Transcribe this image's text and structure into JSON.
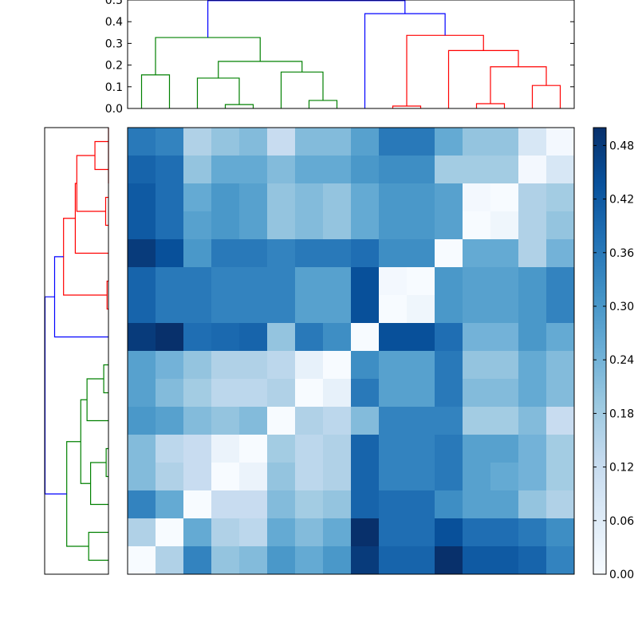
{
  "chart_data": {
    "type": "heatmap",
    "title": "",
    "n_rows": 16,
    "n_cols": 16,
    "colormap": [
      "#f7fbff",
      "#deebf7",
      "#c6dbef",
      "#9ecae1",
      "#6baed6",
      "#4292c6",
      "#2171b5",
      "#08519c",
      "#08306b"
    ],
    "clim": [
      0.0,
      0.5
    ],
    "values": [
      [
        0.36,
        0.34,
        0.16,
        0.2,
        0.22,
        0.12,
        0.22,
        0.22,
        0.28,
        0.36,
        0.36,
        0.26,
        0.2,
        0.2,
        0.08,
        0.01
      ],
      [
        0.4,
        0.38,
        0.2,
        0.26,
        0.26,
        0.22,
        0.26,
        0.26,
        0.3,
        0.32,
        0.32,
        0.18,
        0.18,
        0.18,
        0.01,
        0.08
      ],
      [
        0.42,
        0.38,
        0.26,
        0.3,
        0.28,
        0.2,
        0.22,
        0.2,
        0.26,
        0.3,
        0.3,
        0.28,
        0.01,
        0.0,
        0.16,
        0.18
      ],
      [
        0.42,
        0.38,
        0.28,
        0.3,
        0.28,
        0.2,
        0.22,
        0.2,
        0.26,
        0.3,
        0.3,
        0.28,
        0.0,
        0.02,
        0.16,
        0.2
      ],
      [
        0.48,
        0.44,
        0.3,
        0.36,
        0.36,
        0.34,
        0.36,
        0.36,
        0.38,
        0.32,
        0.32,
        0.0,
        0.26,
        0.26,
        0.16,
        0.24
      ],
      [
        0.4,
        0.36,
        0.36,
        0.34,
        0.34,
        0.34,
        0.28,
        0.28,
        0.44,
        0.01,
        0.0,
        0.3,
        0.28,
        0.28,
        0.3,
        0.34
      ],
      [
        0.4,
        0.36,
        0.36,
        0.34,
        0.34,
        0.34,
        0.28,
        0.28,
        0.44,
        0.0,
        0.02,
        0.3,
        0.28,
        0.28,
        0.3,
        0.34
      ],
      [
        0.48,
        0.5,
        0.38,
        0.39,
        0.4,
        0.2,
        0.36,
        0.32,
        0.0,
        0.44,
        0.44,
        0.38,
        0.24,
        0.24,
        0.3,
        0.26
      ],
      [
        0.28,
        0.24,
        0.2,
        0.16,
        0.16,
        0.14,
        0.04,
        0.0,
        0.32,
        0.28,
        0.28,
        0.36,
        0.2,
        0.2,
        0.26,
        0.22
      ],
      [
        0.28,
        0.22,
        0.18,
        0.14,
        0.14,
        0.16,
        0.0,
        0.04,
        0.36,
        0.28,
        0.28,
        0.36,
        0.22,
        0.22,
        0.26,
        0.22
      ],
      [
        0.3,
        0.28,
        0.22,
        0.2,
        0.22,
        0.0,
        0.16,
        0.14,
        0.22,
        0.34,
        0.34,
        0.34,
        0.18,
        0.18,
        0.22,
        0.12
      ],
      [
        0.22,
        0.14,
        0.12,
        0.03,
        0.0,
        0.18,
        0.14,
        0.16,
        0.4,
        0.34,
        0.34,
        0.36,
        0.28,
        0.28,
        0.24,
        0.18
      ],
      [
        0.22,
        0.16,
        0.12,
        0.0,
        0.03,
        0.2,
        0.14,
        0.16,
        0.4,
        0.34,
        0.34,
        0.36,
        0.28,
        0.26,
        0.24,
        0.18
      ],
      [
        0.34,
        0.26,
        0.0,
        0.12,
        0.12,
        0.22,
        0.18,
        0.2,
        0.4,
        0.38,
        0.38,
        0.32,
        0.28,
        0.28,
        0.2,
        0.16
      ],
      [
        0.16,
        0.0,
        0.26,
        0.16,
        0.14,
        0.26,
        0.22,
        0.26,
        0.5,
        0.38,
        0.38,
        0.44,
        0.38,
        0.38,
        0.36,
        0.32
      ],
      [
        0.0,
        0.16,
        0.34,
        0.2,
        0.22,
        0.3,
        0.26,
        0.3,
        0.48,
        0.4,
        0.4,
        0.5,
        0.42,
        0.42,
        0.4,
        0.34
      ]
    ],
    "top_dendrogram": {
      "ylim": [
        0.0,
        0.5
      ],
      "yticks": [
        "0.0",
        "0.1",
        "0.2",
        "0.3",
        "0.4",
        "0.5"
      ],
      "links": [
        {
          "x": [
            0.5,
            0.5,
            1.5,
            1.5
          ],
          "h": [
            0.0,
            0.155,
            0.155,
            0.0
          ],
          "color": "#008000"
        },
        {
          "x": [
            3.5,
            3.5,
            4.5,
            4.5
          ],
          "h": [
            0.0,
            0.018,
            0.018,
            0.0
          ],
          "color": "#008000"
        },
        {
          "x": [
            2.5,
            2.5,
            4.0,
            4.0
          ],
          "h": [
            0.0,
            0.14,
            0.14,
            0.018
          ],
          "color": "#008000"
        },
        {
          "x": [
            6.5,
            6.5,
            7.5,
            7.5
          ],
          "h": [
            0.0,
            0.037,
            0.037,
            0.0
          ],
          "color": "#008000"
        },
        {
          "x": [
            5.5,
            5.5,
            7.0,
            7.0
          ],
          "h": [
            0.0,
            0.168,
            0.168,
            0.037
          ],
          "color": "#008000"
        },
        {
          "x": [
            3.25,
            3.25,
            6.25,
            6.25
          ],
          "h": [
            0.14,
            0.217,
            0.217,
            0.168
          ],
          "color": "#008000"
        },
        {
          "x": [
            1.0,
            1.0,
            4.75,
            4.75
          ],
          "h": [
            0.155,
            0.327,
            0.327,
            0.217
          ],
          "color": "#008000"
        },
        {
          "x": [
            9.5,
            9.5,
            10.5,
            10.5
          ],
          "h": [
            0.0,
            0.011,
            0.011,
            0.0
          ],
          "color": "#ff0000"
        },
        {
          "x": [
            12.5,
            12.5,
            13.5,
            13.5
          ],
          "h": [
            0.0,
            0.022,
            0.022,
            0.0
          ],
          "color": "#ff0000"
        },
        {
          "x": [
            14.5,
            14.5,
            15.5,
            15.5
          ],
          "h": [
            0.0,
            0.106,
            0.106,
            0.0
          ],
          "color": "#ff0000"
        },
        {
          "x": [
            13.0,
            13.0,
            15.0,
            15.0
          ],
          "h": [
            0.022,
            0.192,
            0.192,
            0.106
          ],
          "color": "#ff0000"
        },
        {
          "x": [
            11.5,
            11.5,
            14.0,
            14.0
          ],
          "h": [
            0.0,
            0.267,
            0.267,
            0.192
          ],
          "color": "#ff0000"
        },
        {
          "x": [
            10.0,
            10.0,
            12.75,
            12.75
          ],
          "h": [
            0.011,
            0.337,
            0.337,
            0.267
          ],
          "color": "#ff0000"
        },
        {
          "x": [
            8.5,
            8.5,
            11.375,
            11.375
          ],
          "h": [
            0.0,
            0.437,
            0.437,
            0.337
          ],
          "color": "#0000ff"
        },
        {
          "x": [
            2.875,
            2.875,
            9.9375,
            9.9375
          ],
          "h": [
            0.327,
            0.497,
            0.497,
            0.437
          ],
          "color": "#0000ff"
        }
      ]
    },
    "left_dendrogram": {
      "xlim": [
        0.0,
        0.5
      ],
      "links": [
        {
          "y": [
            0.5,
            0.5,
            1.5,
            1.5
          ],
          "h": [
            0.0,
            0.106,
            0.106,
            0.0
          ],
          "color": "#ff0000"
        },
        {
          "y": [
            2.5,
            2.5,
            3.5,
            3.5
          ],
          "h": [
            0.0,
            0.022,
            0.022,
            0.0
          ],
          "color": "#ff0000"
        },
        {
          "y": [
            1.0,
            1.0,
            3.0,
            3.0
          ],
          "h": [
            0.106,
            0.248,
            0.248,
            0.022
          ],
          "color": "#ff0000"
        },
        {
          "y": [
            0.0,
            0.0,
            2.0,
            2.0
          ],
          "h": [
            0.0,
            0.0,
            0.0,
            0.0
          ],
          "color": "#ff0000"
        },
        {
          "y": [
            4.5,
            4.5,
            2.0,
            2.0
          ],
          "h": [
            0.0,
            0.26,
            0.26,
            0.248
          ],
          "color": "#ff0000"
        },
        {
          "y": [
            5.5,
            5.5,
            6.5,
            6.5
          ],
          "h": [
            0.0,
            0.011,
            0.011,
            0.0
          ],
          "color": "#ff0000"
        },
        {
          "y": [
            3.25,
            3.25,
            6.0,
            6.0
          ],
          "h": [
            0.26,
            0.352,
            0.352,
            0.011
          ],
          "color": "#ff0000"
        },
        {
          "y": [
            7.5,
            7.5,
            4.625,
            4.625
          ],
          "h": [
            0.0,
            0.422,
            0.422,
            0.352
          ],
          "color": "#0000ff"
        },
        {
          "y": [
            8.5,
            8.5,
            9.5,
            9.5
          ],
          "h": [
            0.0,
            0.037,
            0.037,
            0.0
          ],
          "color": "#008000"
        },
        {
          "y": [
            10.5,
            10.5,
            9.0,
            9.0
          ],
          "h": [
            0.0,
            0.168,
            0.168,
            0.037
          ],
          "color": "#008000"
        },
        {
          "y": [
            11.5,
            11.5,
            12.5,
            12.5
          ],
          "h": [
            0.0,
            0.018,
            0.018,
            0.0
          ],
          "color": "#008000"
        },
        {
          "y": [
            13.5,
            13.5,
            12.0,
            12.0
          ],
          "h": [
            0.0,
            0.14,
            0.14,
            0.018
          ],
          "color": "#008000"
        },
        {
          "y": [
            9.75,
            9.75,
            12.75,
            12.75
          ],
          "h": [
            0.168,
            0.217,
            0.217,
            0.14
          ],
          "color": "#008000"
        },
        {
          "y": [
            14.5,
            14.5,
            15.5,
            15.5
          ],
          "h": [
            0.0,
            0.155,
            0.155,
            0.0
          ],
          "color": "#008000"
        },
        {
          "y": [
            11.25,
            11.25,
            15.0,
            15.0
          ],
          "h": [
            0.217,
            0.327,
            0.327,
            0.155
          ],
          "color": "#008000"
        },
        {
          "y": [
            6.0625,
            6.0625,
            13.125,
            13.125
          ],
          "h": [
            0.422,
            0.497,
            0.497,
            0.327
          ],
          "color": "#0000ff"
        }
      ]
    },
    "colorbar": {
      "range": [
        0.0,
        0.5
      ],
      "ticks": [
        "0.00",
        "0.06",
        "0.12",
        "0.18",
        "0.24",
        "0.30",
        "0.36",
        "0.42",
        "0.48"
      ]
    }
  }
}
